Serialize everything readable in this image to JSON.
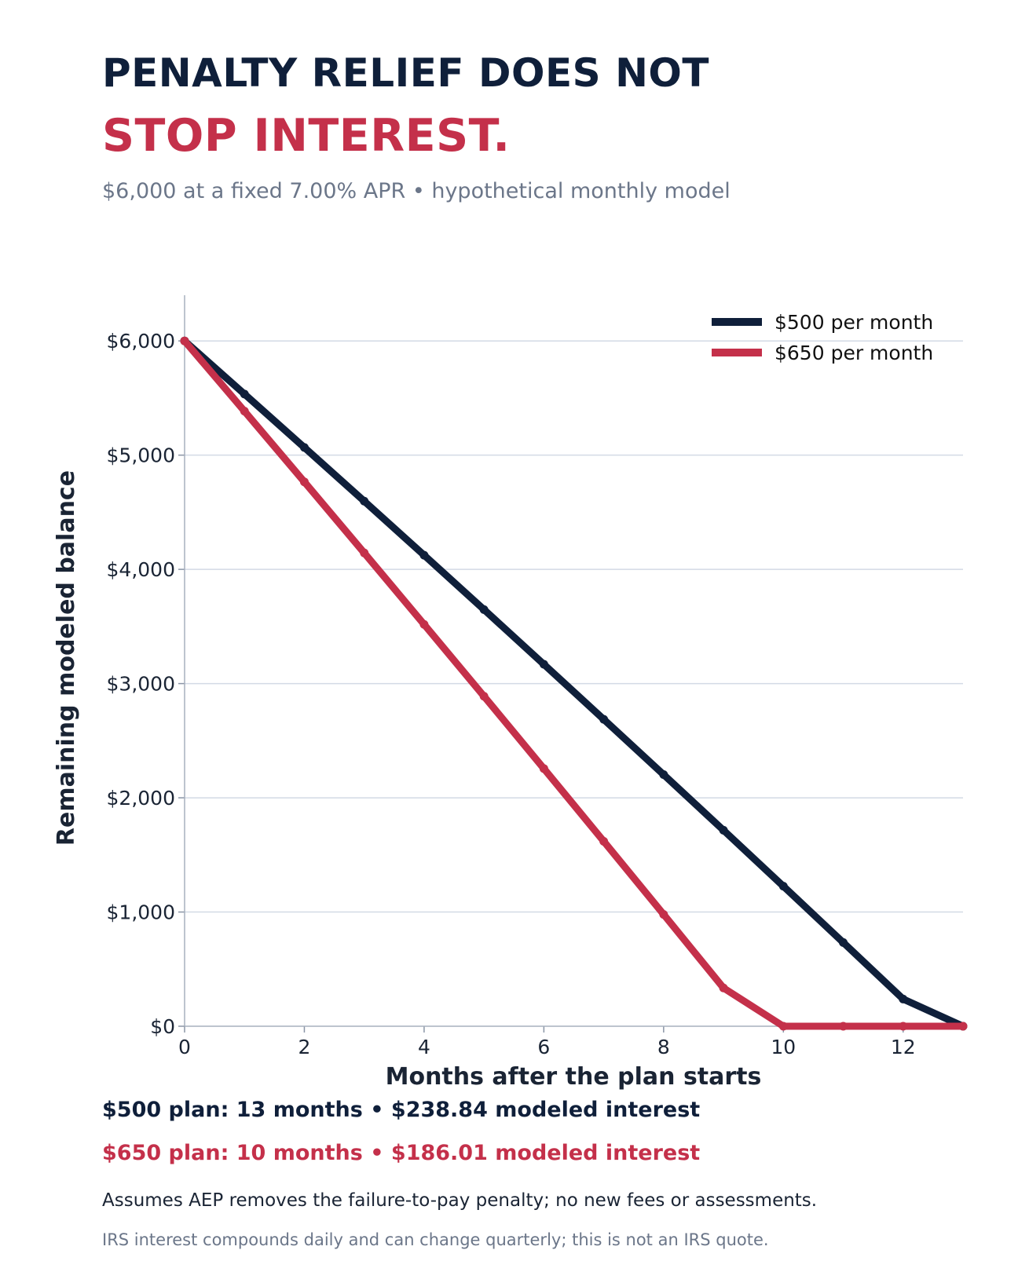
{
  "header": {
    "title_line_1": "PENALTY RELIEF DOES NOT",
    "title_line_2": "STOP INTEREST.",
    "subtitle": "$6,000 at a fixed 7.00% APR  •  hypothetical monthly model"
  },
  "chart_data": {
    "type": "line",
    "xlabel": "Months after the plan starts",
    "ylabel": "Remaining modeled balance",
    "xlim": [
      0,
      13
    ],
    "ylim": [
      0,
      6400
    ],
    "x_ticks": [
      0,
      2,
      4,
      6,
      8,
      10,
      12
    ],
    "y_ticks": [
      0,
      1000,
      2000,
      3000,
      4000,
      5000,
      6000
    ],
    "y_tick_labels": [
      "$0",
      "$1,000",
      "$2,000",
      "$3,000",
      "$4,000",
      "$5,000",
      "$6,000"
    ],
    "grid": "horizontal",
    "legend_position": "top-right",
    "x": [
      0,
      1,
      2,
      3,
      4,
      5,
      6,
      7,
      8,
      9,
      10,
      11,
      12,
      13
    ],
    "series": [
      {
        "name": "$500 per month",
        "color": "#0f1f3a",
        "values": [
          6000,
          5535,
          5067,
          4597,
          4124,
          3648,
          3169,
          2687,
          2203,
          1716,
          1226,
          733,
          238,
          0
        ]
      },
      {
        "name": "$650 per month",
        "color": "#c4304a",
        "values": [
          6000,
          5385,
          4766,
          4144,
          3518,
          2889,
          2256,
          1619,
          979,
          335,
          0,
          0,
          0,
          0
        ]
      }
    ]
  },
  "summary": {
    "plan_500": "$500 plan: 13 months  •  $238.84 modeled interest",
    "plan_650": "$650 plan: 10 months  •  $186.01 modeled interest"
  },
  "notes": {
    "assumption": "Assumes AEP removes the failure-to-pay penalty; no new fees or assessments.",
    "disclaimer": "IRS interest compounds daily and can change quarterly; this is not an IRS quote."
  },
  "colors": {
    "navy": "#0f1f3a",
    "red": "#c4304a",
    "gray_text": "#6b7689",
    "grid": "#d3dae5"
  }
}
